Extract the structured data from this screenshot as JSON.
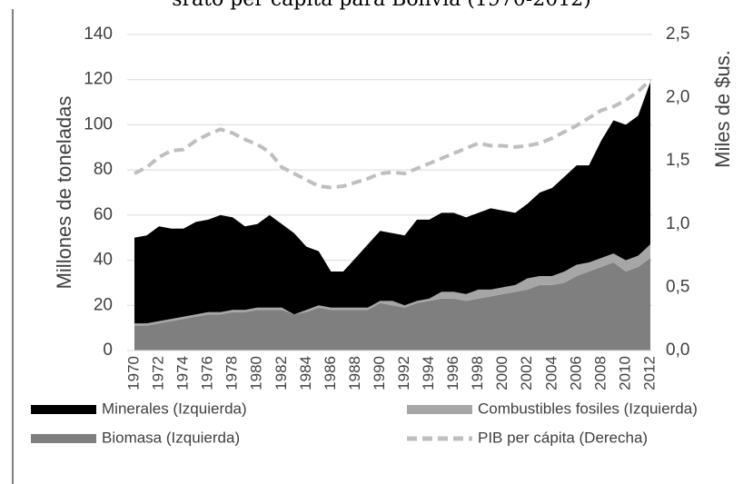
{
  "chart_data": {
    "type": "stacked-area-line",
    "title": "srato per cápita para Bolivia (1970-2012)",
    "y_label": "Millones de toneladas",
    "y2_label": "Miles de $us.",
    "categories": [
      "1970",
      null,
      "1972",
      null,
      "1974",
      null,
      "1976",
      null,
      "1978",
      null,
      "1980",
      null,
      "1982",
      null,
      "1984",
      null,
      "1986",
      null,
      "1988",
      null,
      "1990",
      null,
      "1992",
      null,
      "1994",
      null,
      "1996",
      null,
      "1998",
      null,
      "2000",
      null,
      "2002",
      null,
      "2004",
      null,
      "2006",
      null,
      "2008",
      null,
      "2010",
      null,
      "2012"
    ],
    "series": [
      {
        "name": "Biomasa (Izquierda)",
        "color": "#7f7f7f",
        "values": [
          11,
          11,
          12,
          13,
          14,
          15,
          16,
          16,
          17,
          17,
          18,
          18,
          18,
          16,
          17,
          19,
          18,
          18,
          18,
          18,
          21,
          20,
          19,
          21,
          22,
          23,
          23,
          22,
          23,
          24,
          25,
          26,
          27,
          29,
          29,
          30,
          33,
          35,
          37,
          39,
          35,
          37,
          41
        ]
      },
      {
        "name": "Combustibles fosiles (Izquierda)",
        "color": "#a6a6a6",
        "values": [
          1,
          1,
          1,
          1,
          1,
          1,
          1,
          1,
          1,
          1,
          1,
          1,
          1,
          0,
          1,
          1,
          1,
          1,
          1,
          1,
          1,
          2,
          1,
          1,
          1,
          3,
          3,
          3,
          4,
          3,
          3,
          3,
          5,
          4,
          4,
          5,
          5,
          4,
          4,
          4,
          5,
          5,
          6
        ]
      },
      {
        "name": "Minerales (Izquierda)",
        "color": "#000000",
        "values": [
          38,
          39,
          42,
          40,
          39,
          41,
          41,
          43,
          41,
          37,
          37,
          41,
          37,
          36,
          28,
          24,
          16,
          16,
          22,
          28,
          31,
          30,
          31,
          36,
          35,
          35,
          35,
          34,
          34,
          36,
          34,
          32,
          33,
          37,
          39,
          42,
          44,
          43,
          52,
          59,
          60,
          62,
          72
        ]
      },
      {
        "name": "PIB per cápita (Derecha)",
        "color": "#bfbfbf",
        "axis": "y2",
        "line_style": "dashed",
        "values": [
          1.4,
          1.45,
          1.53,
          1.58,
          1.59,
          1.66,
          1.71,
          1.75,
          1.72,
          1.67,
          1.63,
          1.57,
          1.45,
          1.4,
          1.35,
          1.3,
          1.29,
          1.3,
          1.33,
          1.36,
          1.4,
          1.41,
          1.4,
          1.44,
          1.48,
          1.52,
          1.56,
          1.6,
          1.64,
          1.62,
          1.62,
          1.61,
          1.62,
          1.64,
          1.68,
          1.73,
          1.78,
          1.84,
          1.9,
          1.93,
          1.98,
          2.05,
          2.14
        ]
      }
    ],
    "ylim": [
      0,
      140
    ],
    "yticks": [
      0,
      20,
      40,
      60,
      80,
      100,
      120,
      140
    ],
    "y2lim": [
      0,
      2.5
    ],
    "y2ticks": [
      {
        "value": 0,
        "label": "0,0"
      },
      {
        "value": 0.5,
        "label": "0,5"
      },
      {
        "value": 1,
        "label": "1,0"
      },
      {
        "value": 1.5,
        "label": "1,5"
      },
      {
        "value": 2,
        "label": "2,0"
      },
      {
        "value": 2.5,
        "label": "2,5"
      }
    ],
    "grid": true,
    "legend": "bottom"
  }
}
